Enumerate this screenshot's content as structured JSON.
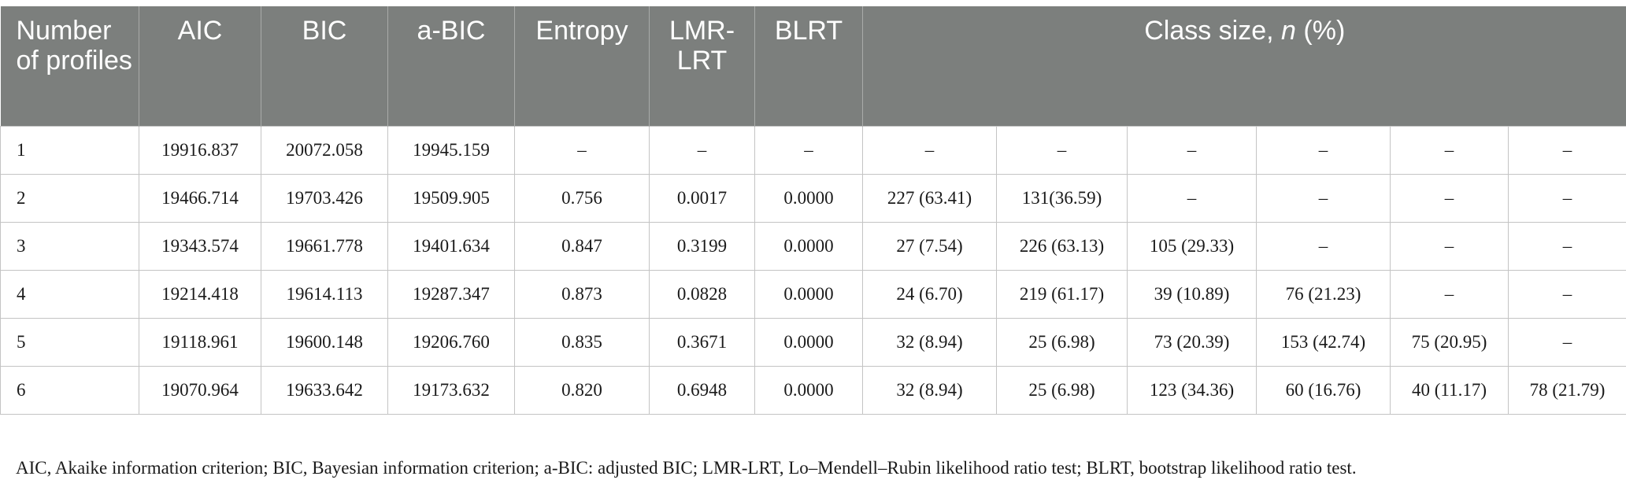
{
  "table": {
    "headers": {
      "number_of_profiles": "Number of profiles",
      "aic": "AIC",
      "bic": "BIC",
      "abic": "a-BIC",
      "entropy": "Entropy",
      "lmr_lrt": "LMR-LRT",
      "blrt": "BLRT",
      "class_size_prefix": "Class size, ",
      "class_size_n": "n",
      "class_size_suffix": " (%)"
    },
    "rows": [
      [
        "1",
        "19916.837",
        "20072.058",
        "19945.159",
        "–",
        "–",
        "–",
        "–",
        "–",
        "–",
        "–",
        "–",
        "–"
      ],
      [
        "2",
        "19466.714",
        "19703.426",
        "19509.905",
        "0.756",
        "0.0017",
        "0.0000",
        "227 (63.41)",
        "131(36.59)",
        "–",
        "–",
        "–",
        "–"
      ],
      [
        "3",
        "19343.574",
        "19661.778",
        "19401.634",
        "0.847",
        "0.3199",
        "0.0000",
        "27 (7.54)",
        "226 (63.13)",
        "105 (29.33)",
        "–",
        "–",
        "–"
      ],
      [
        "4",
        "19214.418",
        "19614.113",
        "19287.347",
        "0.873",
        "0.0828",
        "0.0000",
        "24 (6.70)",
        "219 (61.17)",
        "39 (10.89)",
        "76 (21.23)",
        "–",
        "–"
      ],
      [
        "5",
        "19118.961",
        "19600.148",
        "19206.760",
        "0.835",
        "0.3671",
        "0.0000",
        "32 (8.94)",
        "25 (6.98)",
        "73 (20.39)",
        "153 (42.74)",
        "75 (20.95)",
        "–"
      ],
      [
        "6",
        "19070.964",
        "19633.642",
        "19173.632",
        "0.820",
        "0.6948",
        "0.0000",
        "32 (8.94)",
        "25 (6.98)",
        "123 (34.36)",
        "60 (16.76)",
        "40 (11.17)",
        "78 (21.79)"
      ]
    ]
  },
  "footnote": "AIC, Akaike information criterion; BIC, Bayesian information criterion; a-BIC: adjusted BIC; LMR-LRT, Lo–Mendell–Rubin likelihood ratio test; BLRT, bootstrap likelihood ratio test."
}
